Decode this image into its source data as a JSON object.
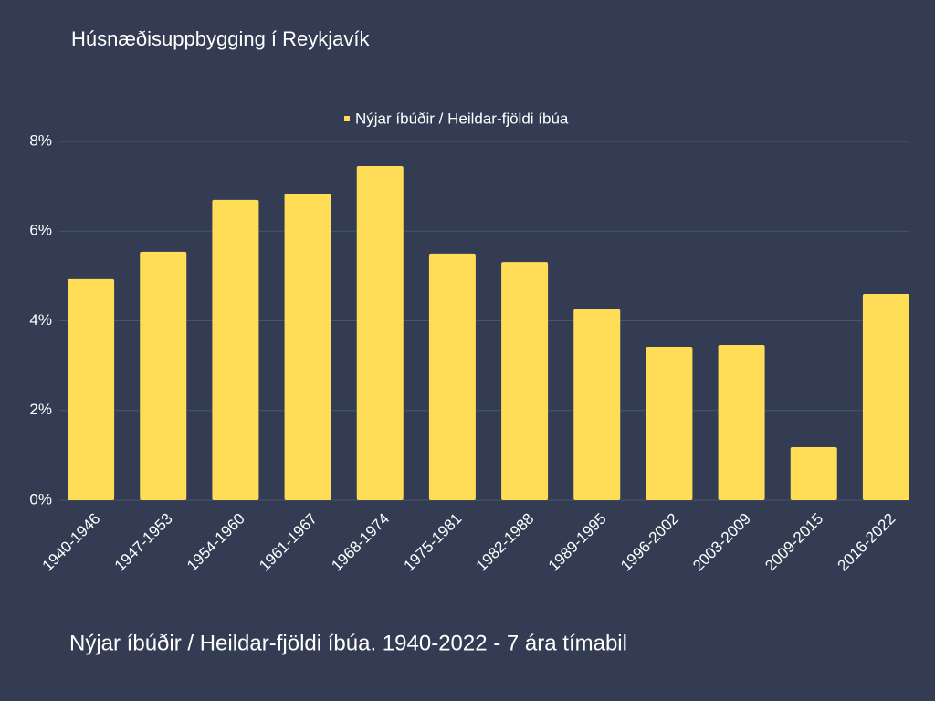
{
  "chart_data": {
    "type": "bar",
    "title": "Húsnæðisuppbygging í Reykjavík",
    "caption": "Nýjar íbúðir / Heildar-fjöldi íbúa. 1940-2022 - 7 ára tímabil",
    "categories": [
      "1940-1946",
      "1947-1953",
      "1954-1960",
      "1961-1967",
      "1968-1974",
      "1975-1981",
      "1982-1988",
      "1989-1995",
      "1996-2002",
      "2003-2009",
      "2009-2015",
      "2016-2022"
    ],
    "series": [
      {
        "name": "Nýjar íbúðir / Heildar-fjöldi íbúa",
        "color": "#ffdd57",
        "values": [
          4.93,
          5.54,
          6.7,
          6.84,
          7.45,
          5.5,
          5.31,
          4.26,
          3.42,
          3.46,
          1.18,
          4.6
        ]
      }
    ],
    "ylim": [
      0,
      8
    ],
    "yticks": [
      {
        "value": 0,
        "label": "0%"
      },
      {
        "value": 2,
        "label": "2%"
      },
      {
        "value": 4,
        "label": "4%"
      },
      {
        "value": 6,
        "label": "6%"
      },
      {
        "value": 8,
        "label": "8%"
      }
    ],
    "grid": true,
    "legend": "top"
  }
}
